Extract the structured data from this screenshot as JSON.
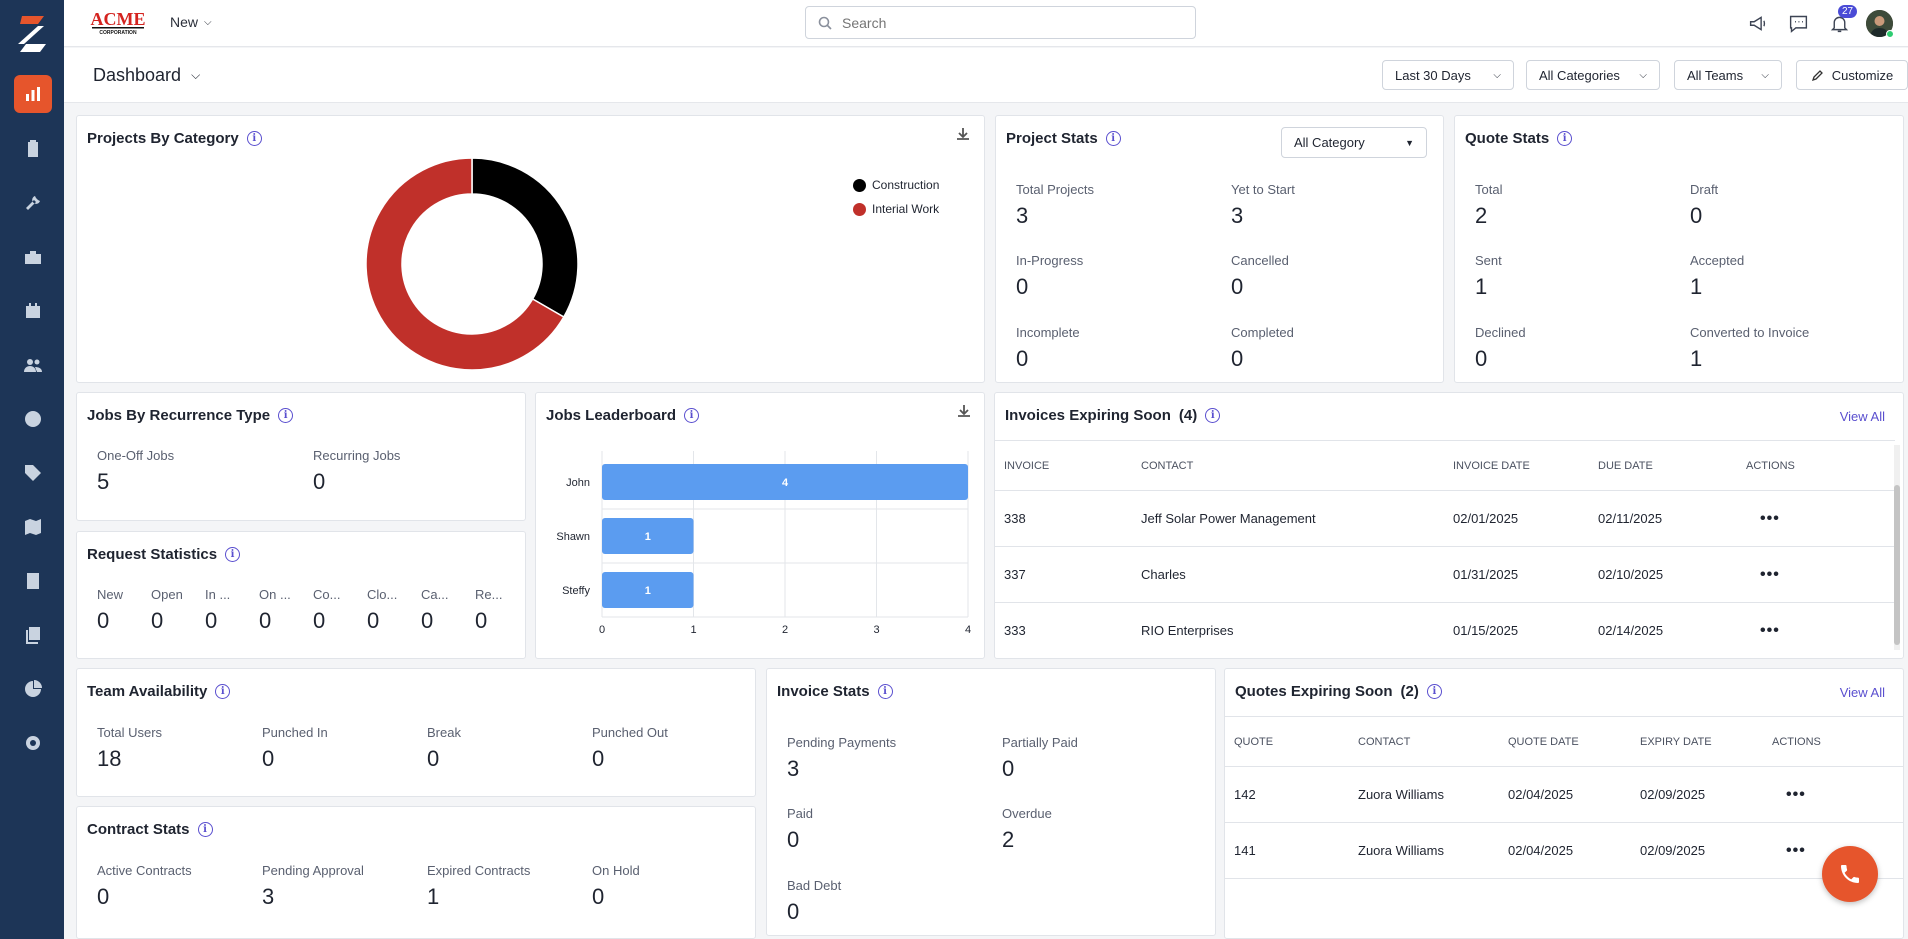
{
  "app": {
    "brand": "ACME CORPORATION",
    "new_label": "New",
    "notification_count": "27"
  },
  "search": {
    "placeholder": "Search"
  },
  "dashboard": {
    "title": "Dashboard"
  },
  "filters": {
    "date": "Last 30 Days",
    "categories": "All Categories",
    "teams": "All Teams",
    "customize": "Customize"
  },
  "projects_by_category": {
    "title": "Projects By Category",
    "chart_data": {
      "type": "pie",
      "title": "Projects By Category",
      "categories": [
        "Construction",
        "Interial Work"
      ],
      "values": [
        1,
        2
      ],
      "colors": [
        "#000000",
        "#c0302a"
      ],
      "legend": "top-right"
    }
  },
  "project_stats": {
    "title": "Project Stats",
    "filter": "All Category",
    "items": [
      {
        "label": "Total Projects",
        "value": "3"
      },
      {
        "label": "Yet to Start",
        "value": "3"
      },
      {
        "label": "In-Progress",
        "value": "0"
      },
      {
        "label": "Cancelled",
        "value": "0"
      },
      {
        "label": "Incomplete",
        "value": "0"
      },
      {
        "label": "Completed",
        "value": "0"
      }
    ]
  },
  "quote_stats": {
    "title": "Quote Stats",
    "items": [
      {
        "label": "Total",
        "value": "2"
      },
      {
        "label": "Draft",
        "value": "0"
      },
      {
        "label": "Sent",
        "value": "1"
      },
      {
        "label": "Accepted",
        "value": "1"
      },
      {
        "label": "Declined",
        "value": "0"
      },
      {
        "label": "Converted to Invoice",
        "value": "1"
      }
    ]
  },
  "jobs_recurrence": {
    "title": "Jobs By Recurrence Type",
    "items": [
      {
        "label": "One-Off Jobs",
        "value": "5"
      },
      {
        "label": "Recurring Jobs",
        "value": "0"
      }
    ]
  },
  "jobs_leaderboard": {
    "title": "Jobs Leaderboard",
    "chart_data": {
      "type": "bar",
      "orientation": "horizontal",
      "categories": [
        "John",
        "Shawn",
        "Steffy"
      ],
      "values": [
        4,
        1,
        1
      ],
      "xticks": [
        "0",
        "1",
        "2",
        "3",
        "4"
      ],
      "xlim": [
        0,
        4
      ],
      "color": "#5b9cf0"
    }
  },
  "invoices_expiring": {
    "title": "Invoices Expiring Soon",
    "count": "(4)",
    "view_all": "View All",
    "columns": [
      "INVOICE",
      "CONTACT",
      "INVOICE DATE",
      "DUE DATE",
      "ACTIONS"
    ],
    "rows": [
      {
        "invoice": "338",
        "contact": "Jeff Solar Power Management",
        "invoice_date": "02/01/2025",
        "due_date": "02/11/2025",
        "actions": "•••"
      },
      {
        "invoice": "337",
        "contact": "Charles",
        "invoice_date": "01/31/2025",
        "due_date": "02/10/2025",
        "actions": "•••"
      },
      {
        "invoice": "333",
        "contact": "RIO Enterprises",
        "invoice_date": "01/15/2025",
        "due_date": "02/14/2025",
        "actions": "•••"
      }
    ]
  },
  "request_stats": {
    "title": "Request Statistics",
    "items": [
      {
        "label": "New",
        "value": "0"
      },
      {
        "label": "Open",
        "value": "0"
      },
      {
        "label": "In ...",
        "value": "0"
      },
      {
        "label": "On ...",
        "value": "0"
      },
      {
        "label": "Co...",
        "value": "0"
      },
      {
        "label": "Clo...",
        "value": "0"
      },
      {
        "label": "Ca...",
        "value": "0"
      },
      {
        "label": "Re...",
        "value": "0"
      }
    ]
  },
  "team_availability": {
    "title": "Team Availability",
    "items": [
      {
        "label": "Total Users",
        "value": "18"
      },
      {
        "label": "Punched In",
        "value": "0"
      },
      {
        "label": "Break",
        "value": "0"
      },
      {
        "label": "Punched Out",
        "value": "0"
      }
    ]
  },
  "invoice_stats": {
    "title": "Invoice Stats",
    "items": [
      {
        "label": "Pending Payments",
        "value": "3"
      },
      {
        "label": "Partially Paid",
        "value": "0"
      },
      {
        "label": "Paid",
        "value": "0"
      },
      {
        "label": "Overdue",
        "value": "2"
      },
      {
        "label": "Bad Debt",
        "value": "0"
      }
    ]
  },
  "quotes_expiring": {
    "title": "Quotes Expiring Soon",
    "count": "(2)",
    "view_all": "View All",
    "columns": [
      "QUOTE",
      "CONTACT",
      "QUOTE DATE",
      "EXPIRY DATE",
      "ACTIONS"
    ],
    "rows": [
      {
        "quote": "142",
        "contact": "Zuora Williams",
        "quote_date": "02/04/2025",
        "expiry_date": "02/09/2025",
        "actions": "•••"
      },
      {
        "quote": "141",
        "contact": "Zuora Williams",
        "quote_date": "02/04/2025",
        "expiry_date": "02/09/2025",
        "actions": "•••"
      }
    ]
  },
  "contract_stats": {
    "title": "Contract Stats",
    "items": [
      {
        "label": "Active Contracts",
        "value": "0"
      },
      {
        "label": "Pending Approval",
        "value": "3"
      },
      {
        "label": "Expired Contracts",
        "value": "1"
      },
      {
        "label": "On Hold",
        "value": "0"
      }
    ]
  },
  "colors": {
    "sidebar": "#1d3557",
    "accent": "#e6552c",
    "link": "#5a4fcf"
  }
}
